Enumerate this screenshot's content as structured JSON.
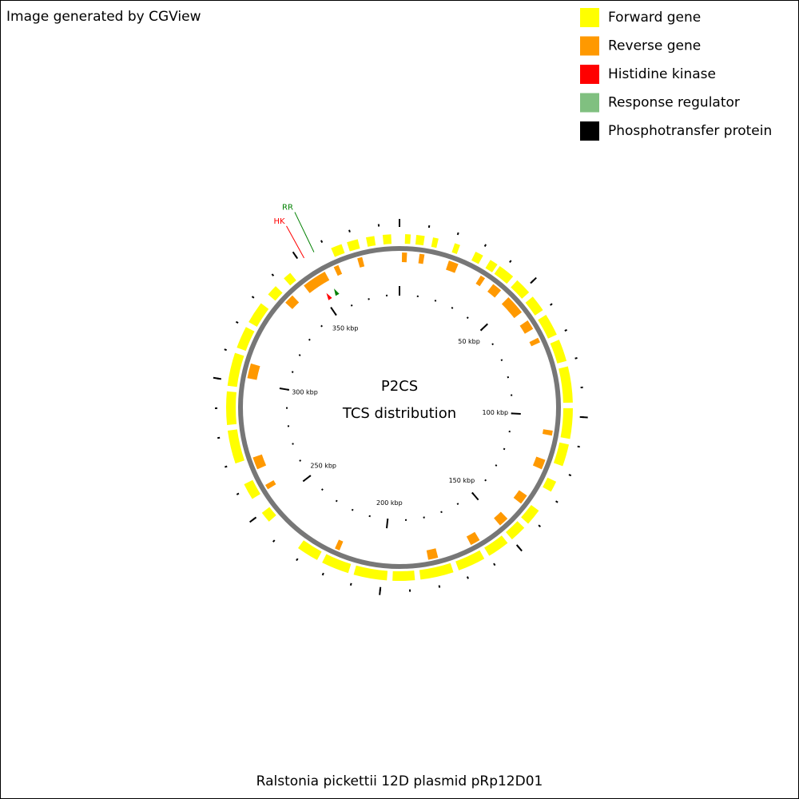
{
  "header": {
    "text": "Image generated by CGView"
  },
  "legend": [
    {
      "label": "Forward gene",
      "color": "#ffff00"
    },
    {
      "label": "Reverse gene",
      "color": "#ff9900"
    },
    {
      "label": "Histidine kinase",
      "color": "#ff0000"
    },
    {
      "label": "Response regulator",
      "color": "#80c080"
    },
    {
      "label": "Phosphotransfer protein",
      "color": "#000000"
    }
  ],
  "map": {
    "title": "P2CS",
    "subtitle": "TCS distribution",
    "caption": "Ralstonia pickettii 12D plasmid pRp12D01",
    "length_kbp": 387,
    "tick_step_kbp": 10,
    "ticks": [
      0,
      {
        "value": 50,
        "label": "50 kbp"
      },
      {
        "value": 100,
        "label": "100 kbp"
      },
      {
        "value": 150,
        "label": "150 kbp"
      },
      {
        "value": 200,
        "label": "200 kbp"
      },
      {
        "value": 250,
        "label": "250 kbp"
      },
      {
        "value": 300,
        "label": "300 kbp"
      },
      {
        "value": 350,
        "label": "350 kbp"
      }
    ],
    "forward_genes": [
      [
        2,
        4
      ],
      [
        6,
        9
      ],
      [
        12,
        14
      ],
      [
        20,
        22
      ],
      [
        28,
        31
      ],
      [
        34,
        37
      ],
      [
        38,
        44
      ],
      [
        46,
        52
      ],
      [
        54,
        60
      ],
      [
        62,
        70
      ],
      [
        72,
        80
      ],
      [
        82,
        95
      ],
      [
        97,
        108
      ],
      [
        110,
        118
      ],
      [
        124,
        128
      ],
      [
        136,
        142
      ],
      [
        144,
        150
      ],
      [
        152,
        160
      ],
      [
        162,
        172
      ],
      [
        174,
        186
      ],
      [
        188,
        196
      ],
      [
        198,
        210
      ],
      [
        212,
        222
      ],
      [
        224,
        232
      ],
      [
        246,
        250
      ],
      [
        256,
        262
      ],
      [
        270,
        282
      ],
      [
        284,
        296
      ],
      [
        298,
        310
      ],
      [
        312,
        320
      ],
      [
        322,
        330
      ],
      [
        334,
        338
      ],
      [
        342,
        345
      ],
      [
        362,
        366
      ],
      [
        368,
        372
      ],
      [
        375,
        378
      ],
      [
        381,
        384
      ]
    ],
    "reverse_genes": [
      [
        1,
        3
      ],
      [
        8,
        10
      ],
      [
        20,
        24
      ],
      [
        34,
        36
      ],
      [
        40,
        44
      ],
      [
        48,
        56
      ],
      [
        60,
        64
      ],
      [
        68,
        70
      ],
      [
        106,
        108
      ],
      [
        118,
        122
      ],
      [
        134,
        138
      ],
      [
        146,
        150
      ],
      [
        160,
        164
      ],
      [
        178,
        182
      ],
      [
        218,
        220
      ],
      [
        256,
        258
      ],
      [
        265,
        270
      ],
      [
        302,
        308
      ],
      [
        336,
        340
      ],
      [
        346,
        356
      ],
      [
        360,
        362
      ],
      [
        370,
        372
      ]
    ],
    "features": [
      {
        "label": "HK",
        "position_kbp": 352,
        "color": "#ff0000"
      },
      {
        "label": "RR",
        "position_kbp": 356,
        "color": "#008000"
      }
    ]
  }
}
